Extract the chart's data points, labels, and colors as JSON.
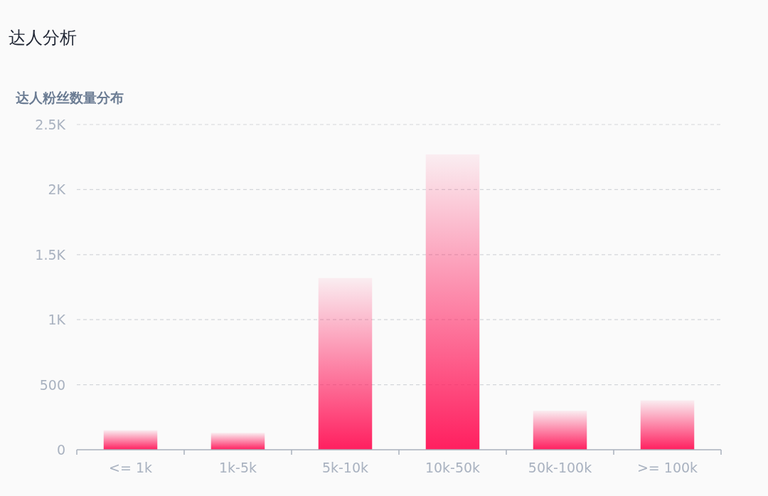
{
  "chart_data": {
    "type": "bar",
    "title": "达人分析",
    "subtitle": "达人粉丝数量分布",
    "categories": [
      "<= 1k",
      "1k-5k",
      "5k-10k",
      "10k-50k",
      "50k-100k",
      ">= 100k"
    ],
    "values": [
      150,
      130,
      1320,
      2270,
      300,
      380
    ],
    "color": "#ff1f5f",
    "ylim": [
      0,
      2500
    ],
    "yticks": [
      0,
      500,
      {
        "value": 1000,
        "label": "1K"
      },
      {
        "value": 1500,
        "label": "1.5K"
      },
      {
        "value": 2000,
        "label": "2K"
      },
      {
        "value": 2500,
        "label": "2.5K"
      }
    ],
    "grid": "y"
  }
}
